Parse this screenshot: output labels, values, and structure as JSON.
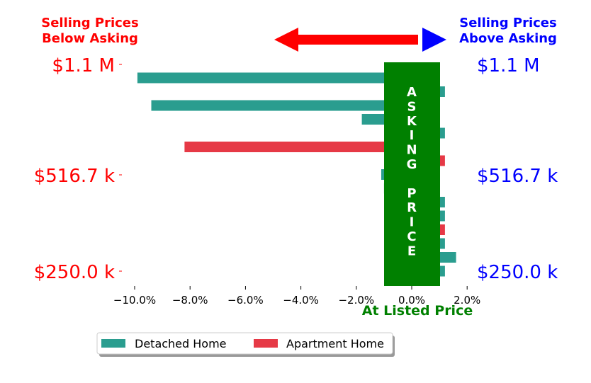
{
  "colors": {
    "detached": "#2a9d8f",
    "apartment": "#e63946",
    "asking_box": "#008000",
    "below": "#ff0000",
    "above": "#0000ff",
    "listed": "#008000"
  },
  "header": {
    "below_line1": "Selling Prices",
    "below_line2": "Below Asking",
    "above_line1": "Selling Prices",
    "above_line2": "Above Asking"
  },
  "asking_box": {
    "word1": [
      "A",
      "S",
      "K",
      "I",
      "N",
      "G"
    ],
    "word2": [
      "P",
      "R",
      "I",
      "C",
      "E"
    ]
  },
  "x_axis_label": "At Listed Price",
  "chart_data": {
    "type": "bar",
    "orientation": "horizontal",
    "xlim": [
      -10.5,
      2.2
    ],
    "x_ticks": [
      -10,
      -8,
      -6,
      -4,
      -2,
      0,
      2
    ],
    "x_tick_labels": [
      "−10.0%",
      "−8.0%",
      "−6.0%",
      "−4.0%",
      "−2.0%",
      "0.0%",
      "2.0%"
    ],
    "xlabel": "At Listed Price",
    "y_tick_labels_left": [
      "$1.1 M",
      "$516.7 k",
      "$250.0 k"
    ],
    "y_tick_labels_right": [
      "$1.1 M",
      "$516.7 k",
      "$250.0 k"
    ],
    "legend": {
      "placement": "bottom-center",
      "entries": [
        "Detached Home",
        "Apartment Home"
      ]
    },
    "bars": [
      {
        "type": "Detached Home",
        "value": -9.9
      },
      {
        "type": "Detached Home",
        "value": 1.2
      },
      {
        "type": "Detached Home",
        "value": -9.4
      },
      {
        "type": "Detached Home",
        "value": -1.8
      },
      {
        "type": "Detached Home",
        "value": 1.2
      },
      {
        "type": "Apartment Home",
        "value": -8.2
      },
      {
        "type": "Apartment Home",
        "value": 1.2
      },
      {
        "type": "Detached Home",
        "value": -1.1
      },
      {
        "type": "Detached Home",
        "value": -1.0
      },
      {
        "type": "Detached Home",
        "value": 1.2
      },
      {
        "type": "Detached Home",
        "value": 1.2
      },
      {
        "type": "Apartment Home",
        "value": 1.2
      },
      {
        "type": "Detached Home",
        "value": 1.2
      },
      {
        "type": "Detached Home",
        "value": 1.6
      },
      {
        "type": "Detached Home",
        "value": 1.2
      }
    ]
  }
}
